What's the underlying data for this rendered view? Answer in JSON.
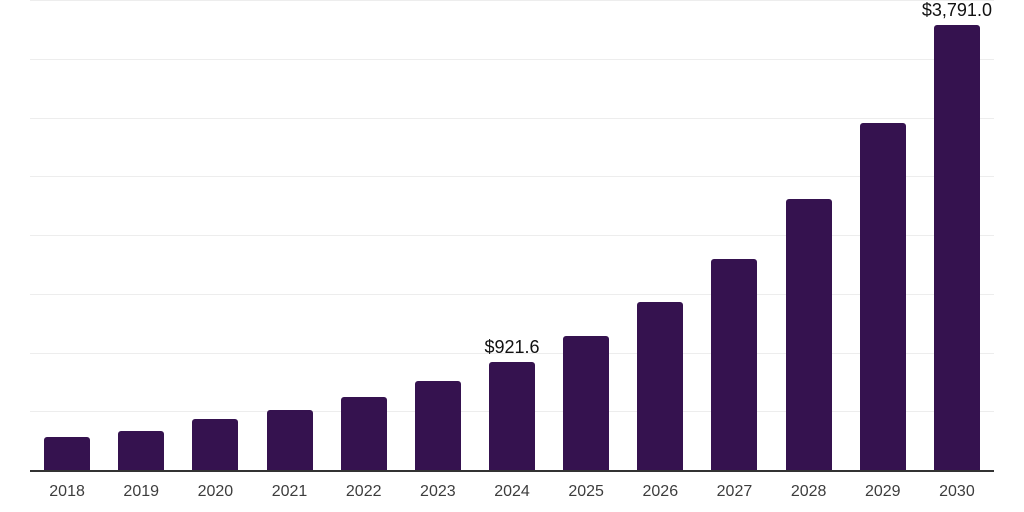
{
  "chart_data": {
    "type": "bar",
    "title": "",
    "xlabel": "",
    "ylabel": "",
    "categories": [
      "2018",
      "2019",
      "2020",
      "2021",
      "2022",
      "2023",
      "2024",
      "2025",
      "2026",
      "2027",
      "2028",
      "2029",
      "2030"
    ],
    "values": [
      280.8,
      336.1,
      434.0,
      510.6,
      621.2,
      757.4,
      921.6,
      1140.3,
      1429.7,
      1795.6,
      2306.2,
      2953.0,
      3791.0
    ],
    "value_labels": [
      "",
      "",
      "",
      "",
      "",
      "",
      "$921.6",
      "",
      "",
      "",
      "",
      "",
      "$3,791.0"
    ],
    "ylim": [
      0,
      4000
    ],
    "gridline_step": 500,
    "grid": true,
    "legend": false,
    "y_axis_tick_labels_visible": false,
    "colors": {
      "bar": "#35124F",
      "gridline": "#EDEDED",
      "axis_line": "#333333",
      "tick_label": "#3D3D3D",
      "value_label": "#111111",
      "background": "#FFFFFF"
    }
  }
}
